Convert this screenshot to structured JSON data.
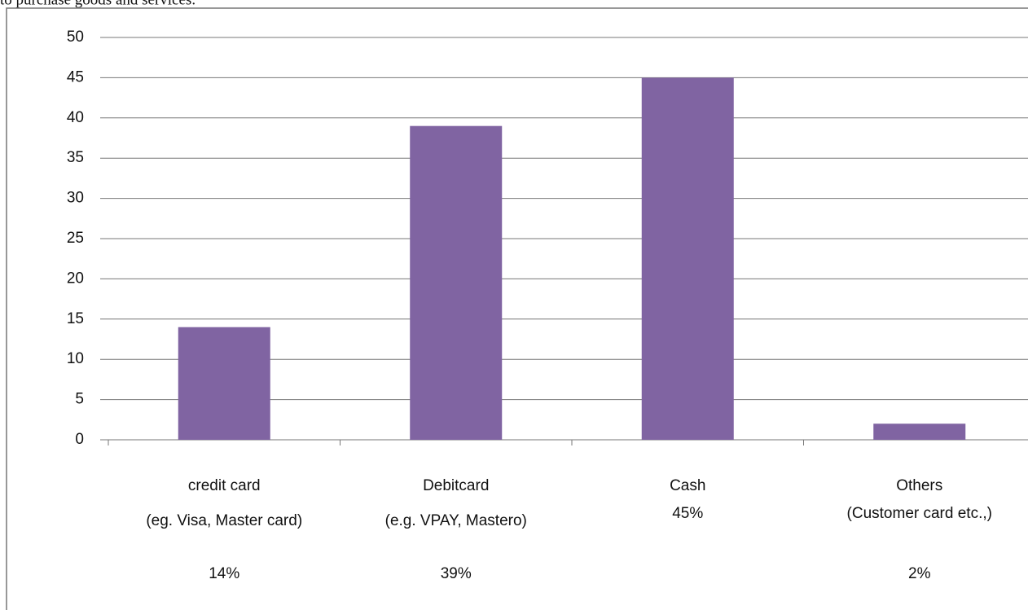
{
  "context_text": "to purchase goods and services.",
  "chart_data": {
    "type": "bar",
    "categories": [
      [
        "credit card",
        "(eg. Visa, Master card)"
      ],
      [
        "Debitcard",
        "(e.g. VPAY, Mastero)"
      ],
      [
        "Cash"
      ],
      [
        "Others",
        "(Customer card etc.,)"
      ]
    ],
    "values": [
      14,
      39,
      45,
      2
    ],
    "value_labels": [
      "14%",
      "39%",
      "45%",
      "2%"
    ],
    "color": "#8064a2",
    "ylim": [
      0,
      50
    ],
    "yticks": [
      0,
      5,
      10,
      15,
      20,
      25,
      30,
      35,
      40,
      45,
      50
    ],
    "grid": true
  }
}
